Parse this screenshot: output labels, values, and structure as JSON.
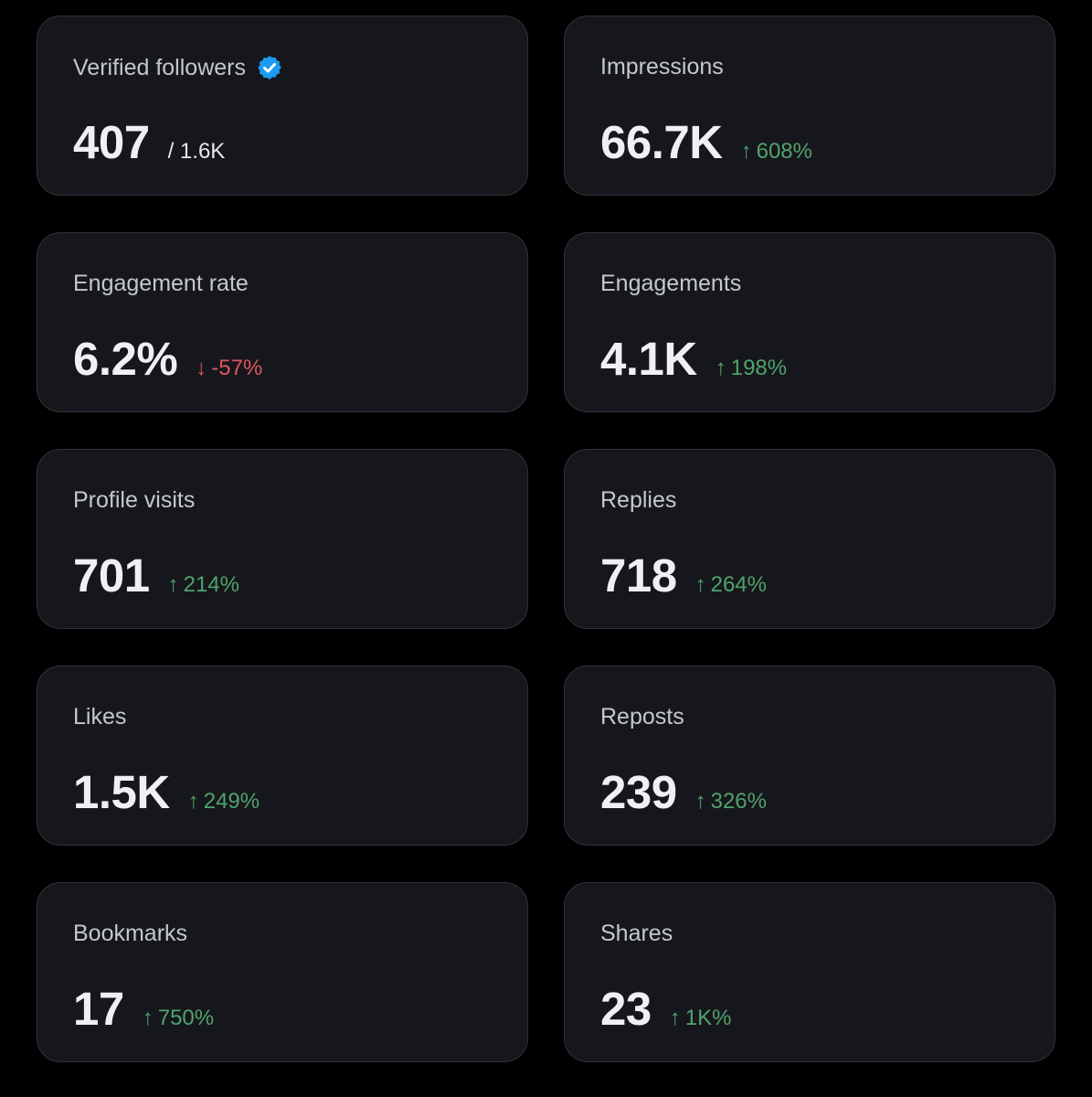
{
  "colors": {
    "page_background": "#000000",
    "card_background": "#16171c",
    "card_border": "#2f3336",
    "label": "#c4c8cc",
    "value": "#eef0f2",
    "positive": "#4fa36c",
    "negative": "#e0555d",
    "verified_badge": "#1d9bf0"
  },
  "metrics": [
    {
      "label": "Verified followers",
      "value": "407",
      "total": "/ 1.6K",
      "icon": "verified-badge-icon"
    },
    {
      "label": "Impressions",
      "value": "66.7K",
      "change": "608%",
      "direction": "up",
      "arrow": "↑"
    },
    {
      "label": "Engagement rate",
      "value": "6.2%",
      "change": "-57%",
      "direction": "down",
      "arrow": "↓"
    },
    {
      "label": "Engagements",
      "value": "4.1K",
      "change": "198%",
      "direction": "up",
      "arrow": "↑"
    },
    {
      "label": "Profile visits",
      "value": "701",
      "change": "214%",
      "direction": "up",
      "arrow": "↑"
    },
    {
      "label": "Replies",
      "value": "718",
      "change": "264%",
      "direction": "up",
      "arrow": "↑"
    },
    {
      "label": "Likes",
      "value": "1.5K",
      "change": "249%",
      "direction": "up",
      "arrow": "↑"
    },
    {
      "label": "Reposts",
      "value": "239",
      "change": "326%",
      "direction": "up",
      "arrow": "↑"
    },
    {
      "label": "Bookmarks",
      "value": "17",
      "change": "750%",
      "direction": "up",
      "arrow": "↑"
    },
    {
      "label": "Shares",
      "value": "23",
      "change": "1K%",
      "direction": "up",
      "arrow": "↑"
    }
  ]
}
